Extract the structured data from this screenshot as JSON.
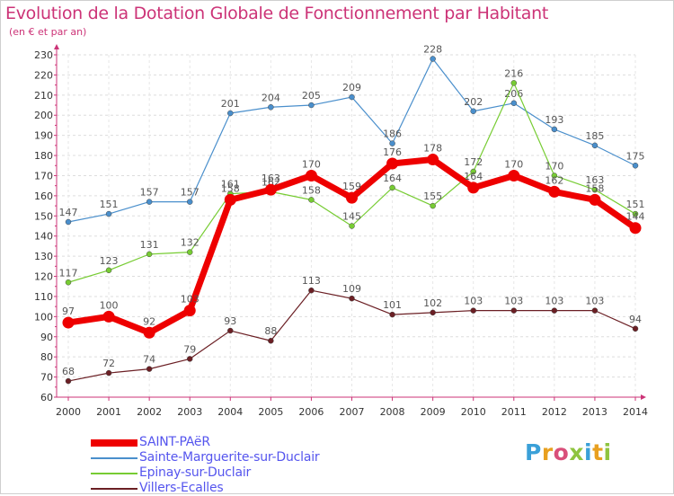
{
  "title": "Evolution de la Dotation Globale de Fonctionnement par Habitant",
  "subtitle": "(en € et par an)",
  "logo_text": "Proxiti",
  "chart_data": {
    "type": "line",
    "x": [
      2000,
      2001,
      2002,
      2003,
      2004,
      2005,
      2006,
      2007,
      2008,
      2009,
      2010,
      2011,
      2012,
      2013,
      2014
    ],
    "ylim": [
      60,
      230
    ],
    "ytick_step": 10,
    "grid": "horizontal dashed",
    "legend_placement": "bottom-left",
    "series": [
      {
        "name": "Sainte-Marguerite-sur-Duclair",
        "color": "#4a8fcc",
        "values": [
          147,
          151,
          157,
          157,
          201,
          204,
          205,
          209,
          186,
          228,
          202,
          206,
          193,
          185,
          175
        ]
      },
      {
        "name": "Epinay-sur-Duclair",
        "color": "#77cc33",
        "values": [
          117,
          123,
          131,
          132,
          161,
          162,
          158,
          145,
          164,
          155,
          172,
          216,
          170,
          163,
          151
        ]
      },
      {
        "name": "Villers-Ecalles",
        "color": "#6b1f24",
        "values": [
          68,
          72,
          74,
          79,
          93,
          88,
          113,
          109,
          101,
          102,
          103,
          103,
          103,
          103,
          94
        ]
      },
      {
        "name": "SAINT-PAëR",
        "color": "#ee0000",
        "values": [
          97,
          100,
          92,
          103,
          158,
          163,
          170,
          159,
          176,
          178,
          164,
          170,
          162,
          158,
          144
        ]
      }
    ],
    "legend_order": [
      "SAINT-PAëR",
      "Sainte-Marguerite-sur-Duclair",
      "Epinay-sur-Duclair",
      "Villers-Ecalles"
    ]
  }
}
